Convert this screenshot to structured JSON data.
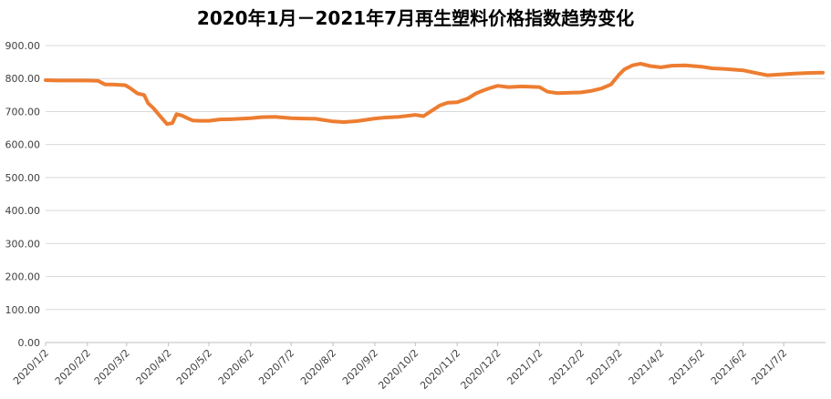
{
  "chart_data": {
    "type": "line",
    "title": "2020年1月－2021年7月再生塑料价格指数趋势变化",
    "xlabel": "",
    "ylabel": "",
    "ylim": [
      0,
      900
    ],
    "yticks": [
      "0.00",
      "100.00",
      "200.00",
      "300.00",
      "400.00",
      "500.00",
      "600.00",
      "700.00",
      "800.00",
      "900.00"
    ],
    "xticks": [
      "2020/1/2",
      "2020/2/2",
      "2020/3/2",
      "2020/4/2",
      "2020/5/2",
      "2020/6/2",
      "2020/7/2",
      "2020/8/2",
      "2020/9/2",
      "2020/10/2",
      "2020/11/2",
      "2020/12/2",
      "2021/1/2",
      "2021/2/2",
      "2021/3/2",
      "2021/4/2",
      "2021/5/2",
      "2021/6/2",
      "2021/7/2"
    ],
    "grid": true,
    "legend": "none",
    "line_color": "#ED7D31",
    "series": [
      {
        "x": [
          "2020/1/2",
          "2020/1/10",
          "2020/1/20",
          "2020/2/2",
          "2020/2/10",
          "2020/2/15",
          "2020/2/20",
          "2020/3/1",
          "2020/3/5",
          "2020/3/10",
          "2020/3/15",
          "2020/3/18",
          "2020/3/22",
          "2020/3/26",
          "2020/4/1",
          "2020/4/5",
          "2020/4/8",
          "2020/4/12",
          "2020/4/16",
          "2020/4/20",
          "2020/4/25",
          "2020/5/2",
          "2020/5/10",
          "2020/5/20",
          "2020/6/2",
          "2020/6/10",
          "2020/6/20",
          "2020/7/2",
          "2020/7/10",
          "2020/7/20",
          "2020/8/2",
          "2020/8/10",
          "2020/8/20",
          "2020/9/2",
          "2020/9/10",
          "2020/9/20",
          "2020/10/2",
          "2020/10/8",
          "2020/10/14",
          "2020/10/20",
          "2020/10/26",
          "2020/11/2",
          "2020/11/10",
          "2020/11/16",
          "2020/11/22",
          "2020/11/27",
          "2020/12/2",
          "2020/12/10",
          "2020/12/20",
          "2021/1/2",
          "2021/1/8",
          "2021/1/15",
          "2021/1/25",
          "2021/2/2",
          "2021/2/10",
          "2021/2/17",
          "2021/2/24",
          "2021/3/2",
          "2021/3/6",
          "2021/3/12",
          "2021/3/18",
          "2021/3/25",
          "2021/4/2",
          "2021/4/10",
          "2021/4/20",
          "2021/5/2",
          "2021/5/10",
          "2021/5/20",
          "2021/6/2",
          "2021/6/10",
          "2021/6/20",
          "2021/7/2",
          "2021/7/10",
          "2021/7/20",
          "2021/7/31"
        ],
        "values": [
          795,
          794,
          794,
          794,
          793,
          782,
          782,
          780,
          770,
          755,
          750,
          725,
          710,
          690,
          662,
          665,
          692,
          688,
          680,
          673,
          672,
          672,
          676,
          677,
          680,
          683,
          684,
          680,
          679,
          678,
          670,
          668,
          671,
          679,
          682,
          684,
          690,
          686,
          702,
          718,
          727,
          728,
          740,
          755,
          765,
          772,
          778,
          774,
          776,
          774,
          760,
          756,
          757,
          758,
          763,
          770,
          782,
          812,
          828,
          840,
          845,
          838,
          834,
          839,
          840,
          836,
          831,
          829,
          825,
          818,
          810,
          813,
          815,
          817,
          818
        ]
      }
    ]
  }
}
